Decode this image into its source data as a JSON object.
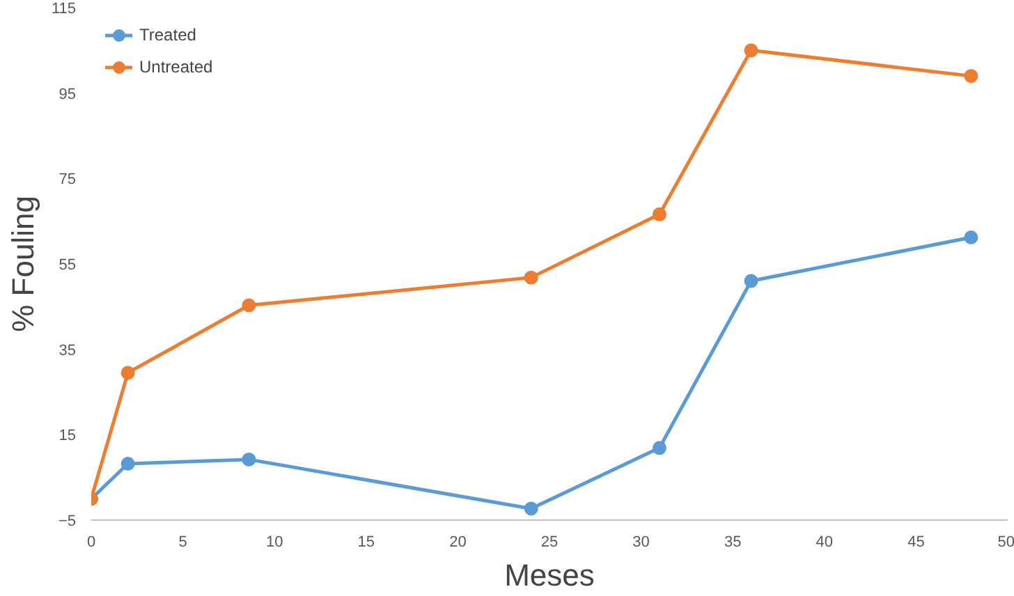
{
  "chart_data": {
    "type": "line",
    "xlabel": "Meses",
    "ylabel": "% Fouling",
    "xlim": [
      0,
      50
    ],
    "xticks": [
      0,
      5,
      10,
      15,
      20,
      25,
      30,
      35,
      40,
      45,
      50
    ],
    "ylim": [
      -5,
      115
    ],
    "yticks": [
      -5,
      15,
      35,
      55,
      75,
      95,
      115
    ],
    "grid": false,
    "legend": "top left",
    "marker": "circle",
    "line_style": "solid",
    "x": [
      0,
      2,
      8.6,
      24,
      31,
      36,
      48
    ],
    "series": [
      {
        "name": "Treated",
        "color": "#5b9bd5",
        "values": [
          0,
          8.2,
          9.2,
          -2.3,
          11.9,
          51,
          61.2
        ]
      },
      {
        "name": "Untreated",
        "color": "#ed7d31",
        "values": [
          0,
          29.5,
          45.3,
          51.8,
          66.6,
          105,
          99
        ]
      }
    ]
  }
}
